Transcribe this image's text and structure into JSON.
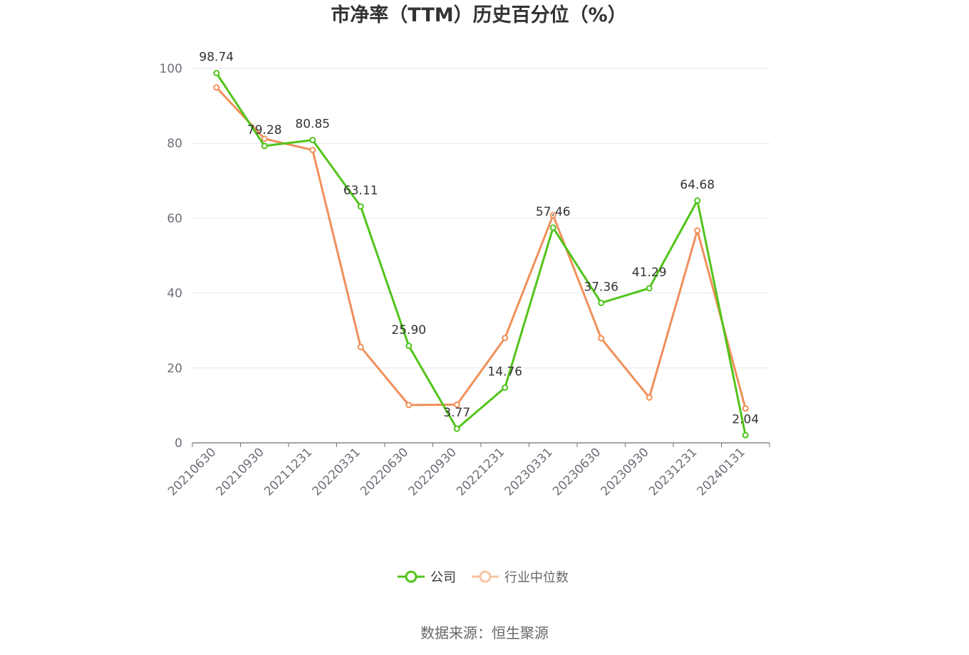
{
  "chart_data": {
    "type": "line",
    "title": "市净率（TTM）历史百分位（%）",
    "categories": [
      "20210630",
      "20210930",
      "20211231",
      "20220331",
      "20220630",
      "20220930",
      "20221231",
      "20230331",
      "20230630",
      "20230930",
      "20231231",
      "20240131"
    ],
    "ylim": [
      0,
      100
    ],
    "yticks": [
      0,
      20,
      40,
      60,
      80,
      100
    ],
    "grid": true,
    "legend_placement": "bottom-center",
    "series": [
      {
        "name": "公司",
        "color": "#52c41a",
        "values": [
          98.74,
          79.28,
          80.85,
          63.11,
          25.9,
          3.77,
          14.76,
          57.46,
          37.36,
          41.29,
          64.68,
          2.04
        ],
        "labels": [
          "98.74",
          "79.28",
          "80.85",
          "63.11",
          "25.90",
          "3.77",
          "14.76",
          "57.46",
          "37.36",
          "41.29",
          "64.68",
          "2.04"
        ]
      },
      {
        "name": "行业中位数",
        "color": "#f0905a",
        "values": [
          94.9,
          81.2,
          78.2,
          25.6,
          10.1,
          10.2,
          28.0,
          60.8,
          27.9,
          12.1,
          56.7,
          9.2
        ]
      }
    ]
  },
  "source_text": "数据来源：恒生聚源"
}
